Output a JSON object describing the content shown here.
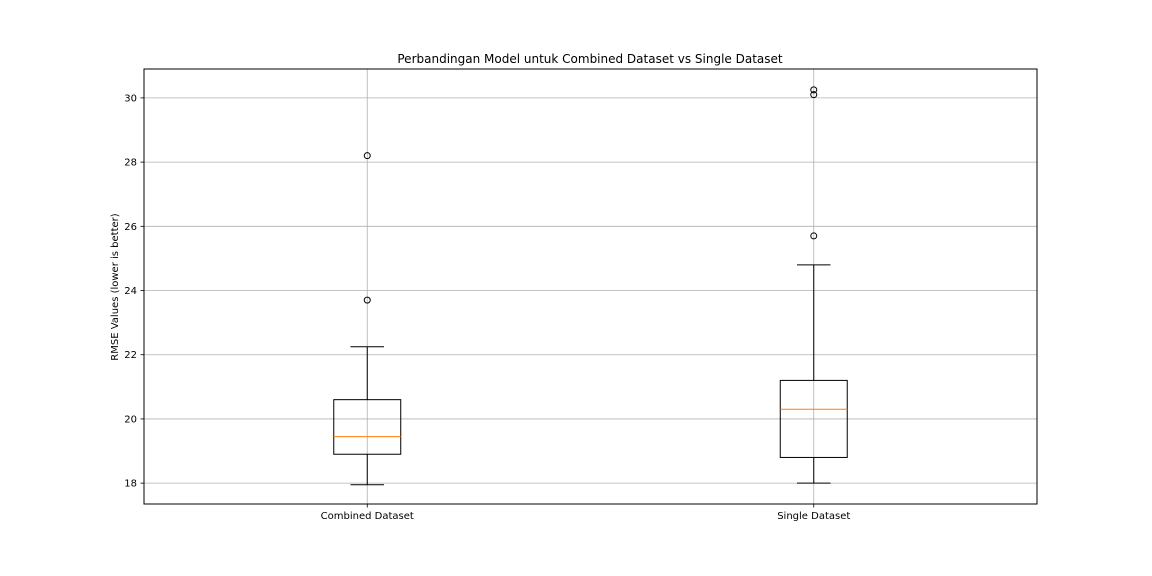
{
  "chart_data": {
    "type": "box",
    "title": "Perbandingan Model untuk Combined Dataset vs Single Dataset",
    "xlabel": "",
    "ylabel": "RMSE Values (lower is better)",
    "ylim": [
      17.35,
      30.9
    ],
    "yticks": [
      18,
      20,
      22,
      24,
      26,
      28,
      30
    ],
    "grid": true,
    "colors": {
      "box": "#000000",
      "median": "#ff7f0e",
      "grid": "#b0b0b0"
    },
    "categories": [
      "Combined Dataset",
      "Single Dataset"
    ],
    "boxes": [
      {
        "category": "Combined Dataset",
        "whisker_low": 17.95,
        "q1": 18.9,
        "median": 19.45,
        "q3": 20.6,
        "whisker_high": 22.25,
        "outliers": [
          23.7,
          28.2
        ]
      },
      {
        "category": "Single Dataset",
        "whisker_low": 18.0,
        "q1": 18.8,
        "median": 20.3,
        "q3": 21.2,
        "whisker_high": 24.8,
        "outliers": [
          25.7,
          30.1,
          30.25
        ]
      }
    ]
  }
}
